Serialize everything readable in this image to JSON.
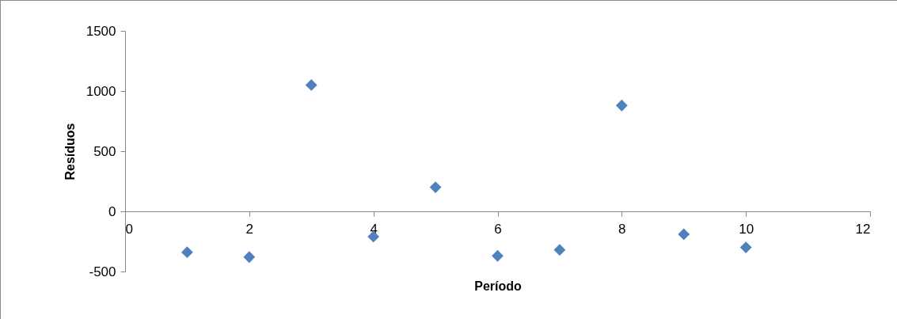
{
  "chart_data": {
    "type": "scatter",
    "xlabel": "Período",
    "ylabel": "Resíduos",
    "x": [
      1,
      2,
      3,
      4,
      5,
      6,
      7,
      8,
      9,
      10
    ],
    "series": [
      {
        "color": "#4f81bd",
        "values": [
          -340,
          -380,
          1050,
          -210,
          200,
          -370,
          -320,
          880,
          -190,
          -300
        ]
      }
    ],
    "xlim": [
      0,
      12
    ],
    "xticks": [
      0,
      2,
      4,
      6,
      8,
      10,
      12
    ],
    "ylim": [
      -500,
      1500
    ],
    "yticks": [
      -500,
      0,
      500,
      1000,
      1500
    ],
    "grid": false,
    "legend": false,
    "marker": "diamond"
  }
}
